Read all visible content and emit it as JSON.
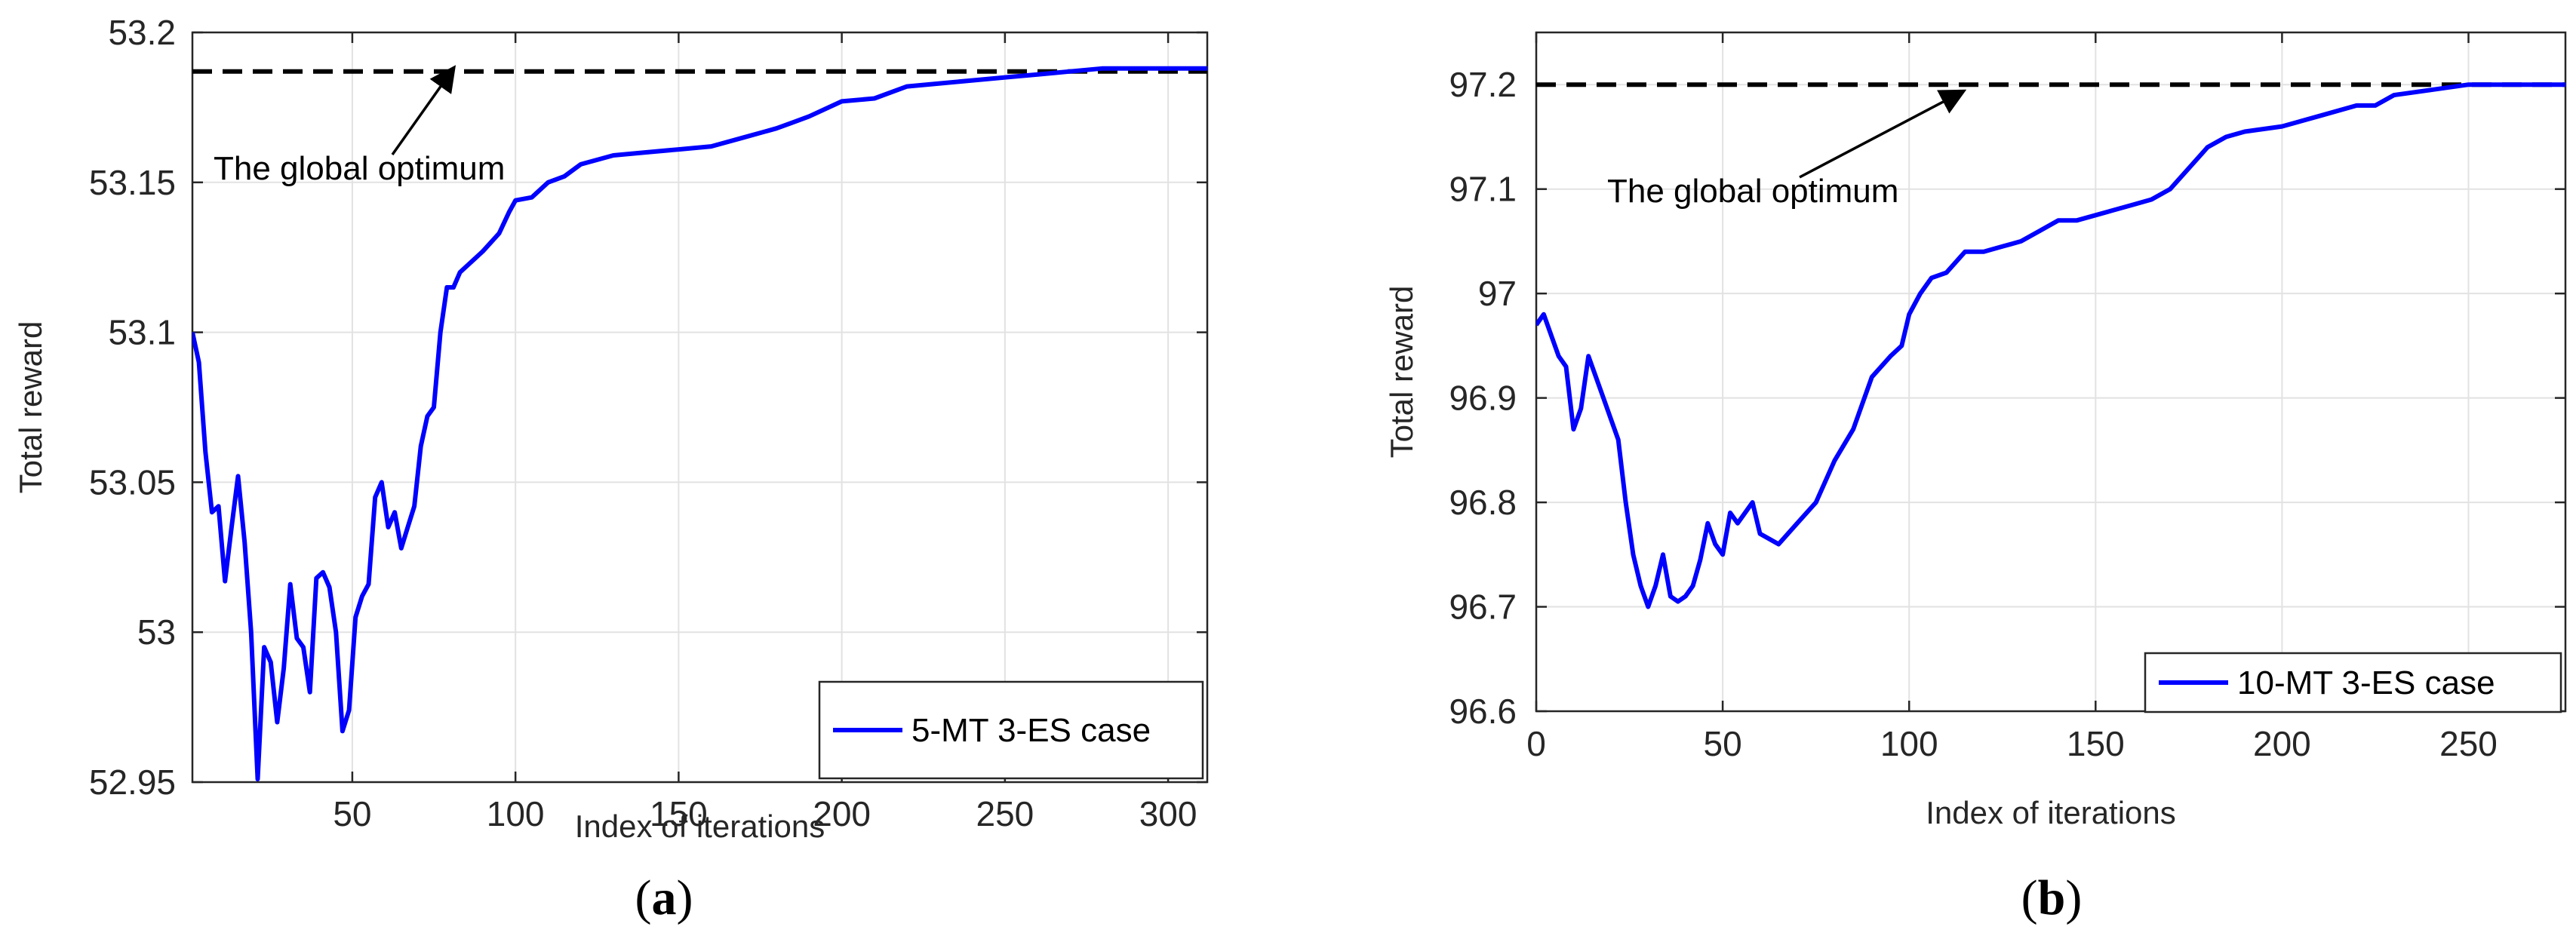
{
  "chart_data": [
    {
      "type": "line",
      "caption": "(a)",
      "caption_letter": "a",
      "xlabel": "Index of iterations",
      "ylabel": "Total reward",
      "xlim": [
        1,
        312
      ],
      "ylim": [
        52.95,
        53.2
      ],
      "xticks": [
        50,
        100,
        150,
        200,
        250,
        300
      ],
      "yticks": [
        52.95,
        53,
        53.05,
        53.1,
        53.15,
        53.2
      ],
      "ytick_labels": [
        "52.95",
        "53",
        "53.05",
        "53.1",
        "53.15",
        "53.2"
      ],
      "grid": true,
      "legend_position": "bottom-right",
      "optimum": 53.187,
      "annotation": "The global optimum",
      "series": [
        {
          "name": "5-MT 3-ES case",
          "color": "#0000ff",
          "x": [
            1,
            3,
            5,
            7,
            9,
            11,
            13,
            15,
            17,
            19,
            21,
            23,
            25,
            27,
            29,
            31,
            33,
            35,
            37,
            39,
            41,
            43,
            45,
            47,
            49,
            51,
            53,
            55,
            57,
            59,
            61,
            63,
            65,
            67,
            69,
            71,
            73,
            75,
            77,
            79,
            81,
            83,
            85,
            90,
            95,
            98,
            100,
            105,
            110,
            115,
            120,
            130,
            140,
            150,
            160,
            170,
            180,
            185,
            190,
            200,
            210,
            220,
            230,
            240,
            250,
            260,
            270,
            280,
            290,
            300,
            312
          ],
          "values": [
            53.1,
            53.09,
            53.06,
            53.04,
            53.042,
            53.017,
            53.035,
            53.052,
            53.03,
            53.0,
            52.951,
            52.995,
            52.99,
            52.97,
            52.988,
            53.016,
            52.998,
            52.995,
            52.98,
            53.018,
            53.02,
            53.015,
            53.0,
            52.967,
            52.974,
            53.005,
            53.012,
            53.016,
            53.045,
            53.05,
            53.035,
            53.04,
            53.028,
            53.035,
            53.042,
            53.062,
            53.072,
            53.075,
            53.1,
            53.115,
            53.115,
            53.12,
            53.122,
            53.127,
            53.133,
            53.14,
            53.144,
            53.145,
            53.15,
            53.152,
            53.156,
            53.159,
            53.16,
            53.161,
            53.162,
            53.165,
            53.168,
            53.17,
            53.172,
            53.177,
            53.178,
            53.182,
            53.183,
            53.184,
            53.185,
            53.186,
            53.187,
            53.188,
            53.188,
            53.188,
            53.188
          ]
        }
      ]
    },
    {
      "type": "line",
      "caption": "(b)",
      "caption_letter": "b",
      "xlabel": "Index of iterations",
      "ylabel": "Total reward",
      "xlim": [
        0,
        276
      ],
      "ylim": [
        96.6,
        97.25
      ],
      "xticks": [
        0,
        50,
        100,
        150,
        200,
        250
      ],
      "yticks": [
        96.6,
        96.7,
        96.8,
        96.9,
        97,
        97.1,
        97.2
      ],
      "ytick_labels": [
        "96.6",
        "96.7",
        "96.8",
        "96.9",
        "97",
        "97.1",
        "97.2"
      ],
      "grid": true,
      "legend_position": "bottom-right",
      "optimum": 97.2,
      "annotation": "The global optimum",
      "series": [
        {
          "name": "10-MT 3-ES case",
          "color": "#0000ff",
          "x": [
            0,
            2,
            4,
            6,
            8,
            10,
            12,
            14,
            16,
            18,
            20,
            22,
            24,
            26,
            28,
            30,
            32,
            34,
            36,
            38,
            40,
            42,
            44,
            46,
            48,
            50,
            52,
            54,
            56,
            58,
            60,
            65,
            70,
            75,
            80,
            85,
            90,
            95,
            98,
            100,
            103,
            106,
            110,
            115,
            120,
            125,
            130,
            135,
            140,
            145,
            150,
            155,
            160,
            165,
            170,
            175,
            180,
            185,
            190,
            200,
            210,
            220,
            225,
            230,
            240,
            250,
            260,
            276
          ],
          "values": [
            96.97,
            96.98,
            96.96,
            96.94,
            96.93,
            96.87,
            96.89,
            96.94,
            96.92,
            96.9,
            96.88,
            96.86,
            96.8,
            96.75,
            96.72,
            96.7,
            96.72,
            96.75,
            96.71,
            96.705,
            96.71,
            96.72,
            96.745,
            96.78,
            96.76,
            96.75,
            96.79,
            96.78,
            96.79,
            96.8,
            96.77,
            96.76,
            96.78,
            96.8,
            96.84,
            96.87,
            96.92,
            96.94,
            96.95,
            96.98,
            97.0,
            97.015,
            97.02,
            97.04,
            97.04,
            97.045,
            97.05,
            97.06,
            97.07,
            97.07,
            97.075,
            97.08,
            97.085,
            97.09,
            97.1,
            97.12,
            97.14,
            97.15,
            97.155,
            97.16,
            97.17,
            97.18,
            97.18,
            97.19,
            97.195,
            97.2,
            97.2,
            97.2
          ]
        }
      ]
    }
  ]
}
